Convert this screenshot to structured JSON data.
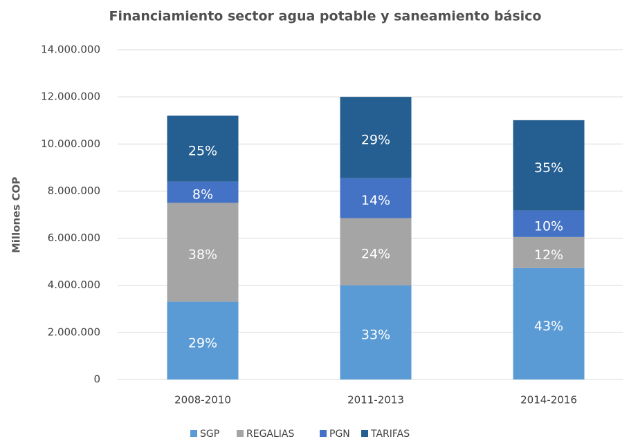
{
  "chart_data": {
    "type": "stacked_bar",
    "title": "Financiamiento sector agua potable y saneamiento básico",
    "y_label": "Millones COP",
    "categories": [
      "2008-2010",
      "2011-2013",
      "2014-2016"
    ],
    "series": [
      {
        "name": "SGP",
        "color": "#5b9bd5",
        "values": [
          3300000,
          4000000,
          4730000
        ],
        "value_labels": [
          "29%",
          "33%",
          "43%"
        ]
      },
      {
        "name": "REGALIAS",
        "color": "#a5a5a5",
        "values": [
          4200000,
          2850000,
          1320000
        ],
        "value_labels": [
          "38%",
          "24%",
          "12%"
        ]
      },
      {
        "name": "PGN",
        "color": "#4472c4",
        "values": [
          900000,
          1700000,
          1120000
        ],
        "value_labels": [
          "8%",
          "14%",
          "10%"
        ]
      },
      {
        "name": "TARIFAS",
        "color": "#255e91",
        "values": [
          2800000,
          3450000,
          3840000
        ],
        "value_labels": [
          "25%",
          "29%",
          "35%"
        ]
      }
    ],
    "ylim": [
      0,
      14000000
    ],
    "yticks": [
      0,
      {
        "value": 2000000,
        "label": "2.000.000"
      },
      {
        "value": 4000000,
        "label": "4.000.000"
      },
      {
        "value": 6000000,
        "label": "6.000.000"
      },
      {
        "value": 8000000,
        "label": "8.000.000"
      },
      {
        "value": 10000000,
        "label": "10.000.000"
      },
      {
        "value": 12000000,
        "label": "12.000.000"
      },
      {
        "value": 14000000,
        "label": "14.000.000"
      }
    ],
    "grid": true,
    "legend": "bottom"
  }
}
